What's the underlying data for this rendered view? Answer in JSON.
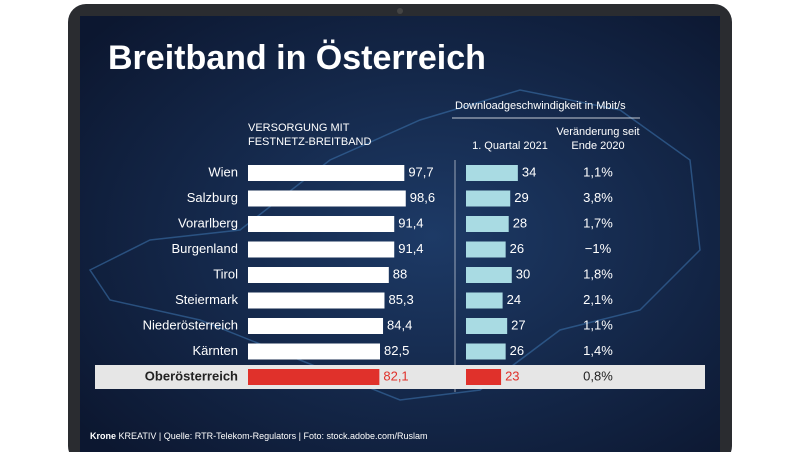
{
  "title": "Breitband in Österreich",
  "footer": {
    "brand": "Krone",
    "brand_sub": "KREATIV",
    "source": "| Quelle: RTR-Telekom-Regulators | Foto: stock.adobe.com/Ruslam"
  },
  "group_title": "Downloadgeschwindigkeit in Mbit/s",
  "chart_data": [
    {
      "type": "bar",
      "orientation": "horizontal",
      "title_lines": [
        "VERSORGUNG MIT",
        "FESTNETZ-BREITBAND"
      ],
      "categories": [
        "Wien",
        "Salzburg",
        "Vorarlberg",
        "Burgenland",
        "Tirol",
        "Steiermark",
        "Niederösterreich",
        "Kärnten",
        "Oberösterreich"
      ],
      "values": [
        97.7,
        98.6,
        91.4,
        91.4,
        88,
        85.3,
        84.4,
        82.5,
        82.1
      ],
      "value_labels": [
        "97,7",
        "98,6",
        "91,4",
        "91,4",
        "88",
        "85,3",
        "84,4",
        "82,5",
        "82,1"
      ],
      "xlim": [
        0,
        100
      ],
      "color": "#ffffff",
      "highlight_color": "#e0312b",
      "highlight_index": 8
    },
    {
      "type": "bar",
      "orientation": "horizontal",
      "title": "1. Quartal 2021",
      "values": [
        34,
        29,
        28,
        26,
        30,
        24,
        27,
        26,
        23
      ],
      "xlim": [
        0,
        40
      ],
      "color": "#a9dbe3",
      "highlight_color": "#e0312b",
      "highlight_index": 8
    },
    {
      "type": "text",
      "title_lines": [
        "Veränderung seit",
        "Ende 2020"
      ],
      "values": [
        1.1,
        3.8,
        1.7,
        -1,
        1.8,
        2.1,
        1.1,
        1.4,
        0.8
      ],
      "value_labels": [
        "1,1%",
        "3,8%",
        "1,7%",
        "−1%",
        "1,8%",
        "2,1%",
        "1,1%",
        "1,4%",
        "0,8%"
      ]
    }
  ]
}
